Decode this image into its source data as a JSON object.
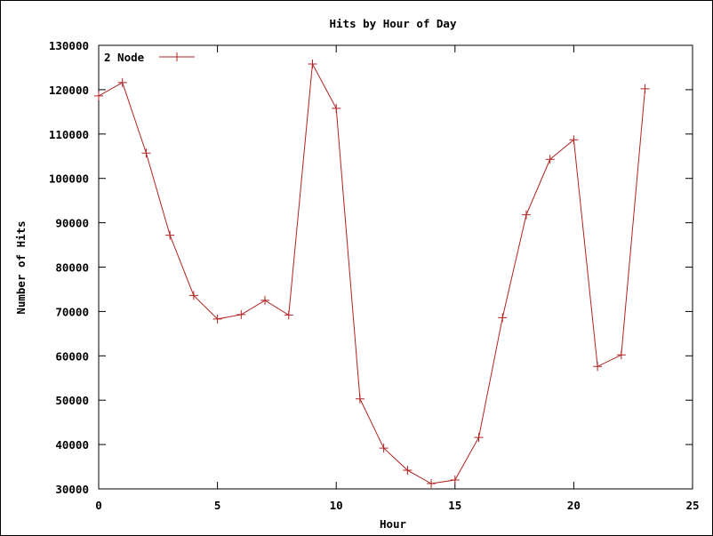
{
  "chart_data": {
    "type": "line",
    "title": "Hits by Hour of Day",
    "xlabel": "Hour",
    "ylabel": "Number of Hits",
    "xlim": [
      0,
      25
    ],
    "ylim": [
      30000,
      130000
    ],
    "x_ticks": [
      0,
      5,
      10,
      15,
      20,
      25
    ],
    "y_ticks": [
      30000,
      40000,
      50000,
      60000,
      70000,
      80000,
      90000,
      100000,
      110000,
      120000,
      130000
    ],
    "grid": false,
    "legend_position": "top-left",
    "x": [
      0,
      1,
      2,
      3,
      4,
      5,
      6,
      7,
      8,
      9,
      10,
      11,
      12,
      13,
      14,
      15,
      16,
      17,
      18,
      19,
      20,
      21,
      22,
      23
    ],
    "series": [
      {
        "name": "2 Node",
        "color": "#b22222",
        "marker": "plus",
        "values": [
          118600,
          121600,
          105700,
          87200,
          73600,
          68300,
          69300,
          72500,
          69200,
          125800,
          115800,
          50300,
          39200,
          34200,
          31200,
          32000,
          41600,
          68600,
          91800,
          104300,
          108700,
          57600,
          60200,
          120200
        ]
      }
    ]
  }
}
